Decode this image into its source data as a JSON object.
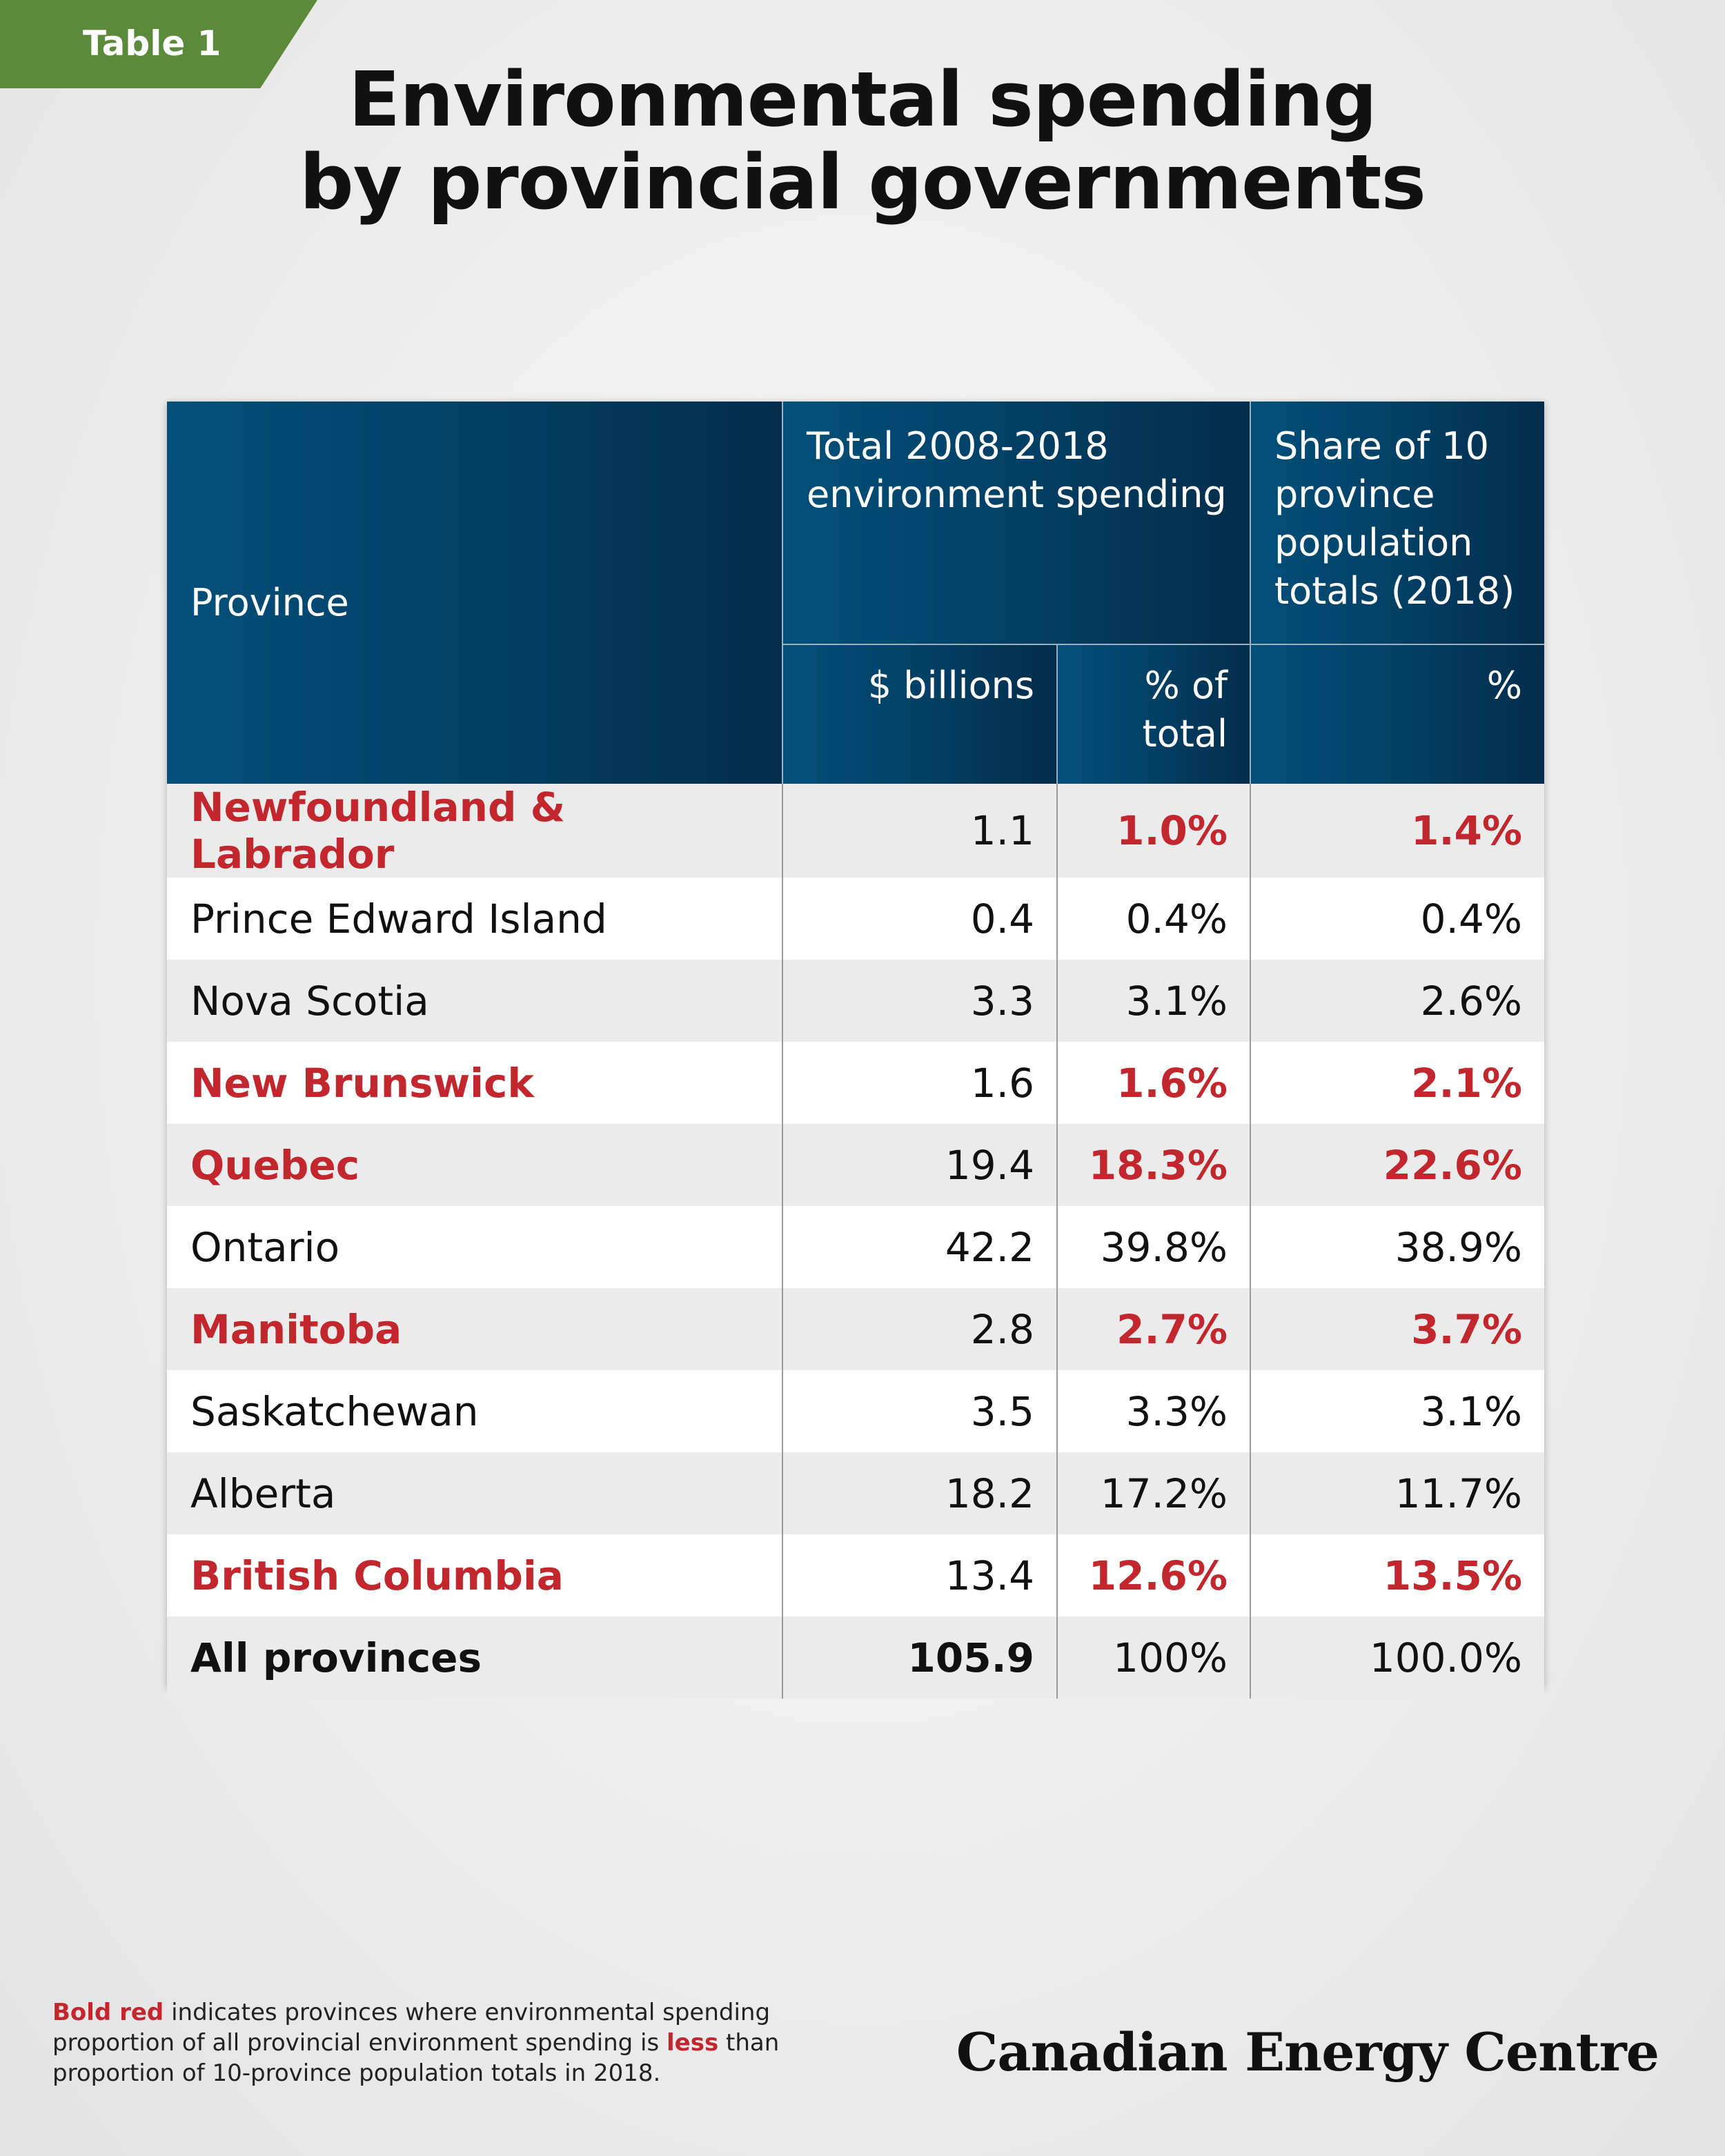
{
  "tag": "Table 1",
  "title_line1": "Environmental spending",
  "title_line2": "by provincial governments",
  "header": {
    "province": "Province",
    "group_total": "Total 2008-2018 environment spending",
    "group_share": "Share of 10 province population totals (2018)",
    "col_billions": "$ billions",
    "col_pct_total": "% of total",
    "col_pct": "%"
  },
  "chart_data": {
    "type": "table",
    "title": "Environmental spending by provincial governments",
    "columns": [
      "Province",
      "$ billions",
      "% of total",
      "%"
    ],
    "rows": [
      {
        "province": "Newfoundland & Labrador",
        "billions": "1.1",
        "pct_total": "1.0%",
        "pop_share": "1.4%",
        "highlight": true
      },
      {
        "province": "Prince Edward Island",
        "billions": "0.4",
        "pct_total": "0.4%",
        "pop_share": "0.4%",
        "highlight": false
      },
      {
        "province": "Nova Scotia",
        "billions": "3.3",
        "pct_total": "3.1%",
        "pop_share": "2.6%",
        "highlight": false
      },
      {
        "province": "New Brunswick",
        "billions": "1.6",
        "pct_total": "1.6%",
        "pop_share": "2.1%",
        "highlight": true
      },
      {
        "province": "Quebec",
        "billions": "19.4",
        "pct_total": "18.3%",
        "pop_share": "22.6%",
        "highlight": true
      },
      {
        "province": "Ontario",
        "billions": "42.2",
        "pct_total": "39.8%",
        "pop_share": "38.9%",
        "highlight": false
      },
      {
        "province": "Manitoba",
        "billions": "2.8",
        "pct_total": "2.7%",
        "pop_share": "3.7%",
        "highlight": true
      },
      {
        "province": "Saskatchewan",
        "billions": "3.5",
        "pct_total": "3.3%",
        "pop_share": "3.1%",
        "highlight": false
      },
      {
        "province": "Alberta",
        "billions": "18.2",
        "pct_total": "17.2%",
        "pop_share": "11.7%",
        "highlight": false
      },
      {
        "province": "British Columbia",
        "billions": "13.4",
        "pct_total": "12.6%",
        "pop_share": "13.5%",
        "highlight": true
      },
      {
        "province": "All provinces",
        "billions": "105.9",
        "pct_total": "100%",
        "pop_share": "100.0%",
        "highlight": false
      }
    ],
    "highlight_color": "#c1272d",
    "header_color": "#033e63"
  },
  "footnote": {
    "bold_red": "Bold red",
    "part1": " indicates provinces where environmental spending proportion of all provincial environment spending is ",
    "less": "less",
    "part2": " than proportion of 10-province population totals in 2018."
  },
  "brand": "Canadian Energy Centre"
}
